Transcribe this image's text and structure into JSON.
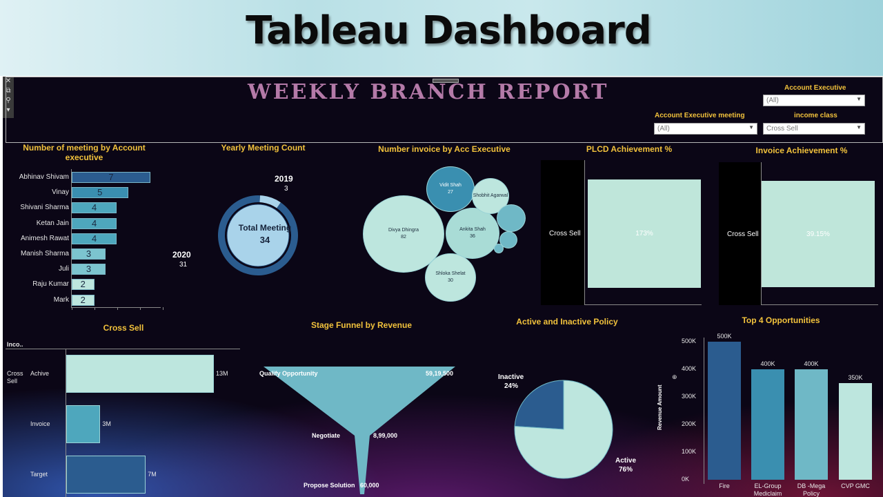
{
  "banner": {
    "title": "Tableau Dashboard"
  },
  "dashboard": {
    "title": "WEEKLY BRANCH REPORT",
    "filters": {
      "account_executive": {
        "label": "Account Executive",
        "value": "(All)"
      },
      "account_executive_meeting": {
        "label": "Account Executive meeting",
        "value": "(All)"
      },
      "income_class": {
        "label": "income class",
        "value": "Cross Sell"
      }
    }
  },
  "meetings_by_exec": {
    "title": "Number of meeting by Account executive",
    "bars": [
      {
        "name": "Abhinav Shivam",
        "value": 7,
        "color": "#2b5c8f"
      },
      {
        "name": "Vinay",
        "value": 5,
        "color": "#3a8fb0"
      },
      {
        "name": "Shivani Sharma",
        "value": 4,
        "color": "#4ea7bd"
      },
      {
        "name": "Ketan Jain",
        "value": 4,
        "color": "#4ea7bd"
      },
      {
        "name": "Animesh Rawat",
        "value": 4,
        "color": "#4ea7bd"
      },
      {
        "name": "Manish Sharma",
        "value": 3,
        "color": "#7cc4cf"
      },
      {
        "name": "Juli",
        "value": 3,
        "color": "#7cc4cf"
      },
      {
        "name": "Raju Kumar",
        "value": 2,
        "color": "#bde6de"
      },
      {
        "name": "Mark",
        "value": 2,
        "color": "#bde6de"
      }
    ],
    "max": 10
  },
  "yearly_meeting": {
    "title": "Yearly Meeting Count",
    "center_label": "Total Meeting",
    "center_value": "34",
    "slices": [
      {
        "year": "2019",
        "count": "3",
        "value": 3,
        "color": "#a9d3ea"
      },
      {
        "year": "2020",
        "count": "31",
        "value": 31,
        "color": "#2b5c8f"
      }
    ]
  },
  "invoice_by_exec": {
    "title": "Number invoice by Acc Executive",
    "bubbles": [
      {
        "name": "Divya Dhingra",
        "value": "82"
      },
      {
        "name": "Ankita Shah",
        "value": "36"
      },
      {
        "name": "Shloka Shelat",
        "value": "30"
      },
      {
        "name": "Vidit Shah",
        "value": "27"
      },
      {
        "name": "Shobhit Agarwal",
        "value": ""
      }
    ]
  },
  "plcd": {
    "title": "PLCD Achievement %",
    "row_label": "Cross Sell",
    "value": "173%"
  },
  "invoice_ach": {
    "title": "Invoice Achievement %",
    "row_label": "Cross Sell",
    "value": "39.15%"
  },
  "cross_sell": {
    "title": "Cross Sell",
    "column_header": "Inco..",
    "group_label": "Cross Sell",
    "rows": [
      {
        "name": "Achive",
        "label": "13M",
        "value": 13,
        "color": "#bde6de"
      },
      {
        "name": "Invoice",
        "label": "3M",
        "value": 3,
        "color": "#4ea7bd"
      },
      {
        "name": "Target",
        "label": "7M",
        "value": 7,
        "color": "#2b5c8f"
      }
    ]
  },
  "funnel": {
    "title": "Stage Funnel by Revenue",
    "stages": [
      {
        "name": "Qualify Opportunity",
        "value": "59,19,500"
      },
      {
        "name": "Negotiate",
        "value": "8,99,000"
      },
      {
        "name": "Propose Solution",
        "value": "60,000"
      }
    ],
    "color": "#6fb8c6"
  },
  "policy": {
    "title": "Active and Inactive Policy",
    "slices": [
      {
        "name": "Inactive",
        "pct_label": "24%",
        "value": 24,
        "color": "#2b5c8f"
      },
      {
        "name": "Active",
        "pct_label": "76%",
        "value": 76,
        "color": "#bde6de"
      }
    ]
  },
  "top4": {
    "title": "Top 4 Opportunities",
    "ylabel": "Revenue Amount",
    "yticks": [
      "500K",
      "400K",
      "300K",
      "200K",
      "100K",
      "0K"
    ],
    "bars": [
      {
        "name": "Fire",
        "label": "500K",
        "value": 500,
        "color": "#2b5c8f"
      },
      {
        "name": "EL-Group Mediclaim",
        "label": "400K",
        "value": 400,
        "color": "#3a8fb0"
      },
      {
        "name": "DB -Mega Policy",
        "label": "400K",
        "value": 400,
        "color": "#6fb8c6"
      },
      {
        "name": "CVP GMC",
        "label": "350K",
        "value": 350,
        "color": "#bde6de"
      }
    ]
  },
  "chart_data": [
    {
      "type": "bar",
      "title": "Number of meeting by Account executive",
      "categories": [
        "Abhinav Shivam",
        "Vinay",
        "Shivani Sharma",
        "Ketan Jain",
        "Animesh Rawat",
        "Manish Sharma",
        "Juli",
        "Raju Kumar",
        "Mark"
      ],
      "values": [
        7,
        5,
        4,
        4,
        4,
        3,
        3,
        2,
        2
      ]
    },
    {
      "type": "pie",
      "title": "Yearly Meeting Count",
      "categories": [
        "2019",
        "2020"
      ],
      "values": [
        3,
        31
      ]
    },
    {
      "type": "bar",
      "title": "Cross Sell",
      "categories": [
        "Achive",
        "Invoice",
        "Target"
      ],
      "values": [
        13,
        3,
        7
      ]
    },
    {
      "type": "pie",
      "title": "Active and Inactive Policy",
      "categories": [
        "Inactive",
        "Active"
      ],
      "values": [
        24,
        76
      ]
    },
    {
      "type": "bar",
      "title": "Top 4 Opportunities",
      "ylabel": "Revenue Amount",
      "categories": [
        "Fire",
        "EL-Group Mediclaim",
        "DB -Mega Policy",
        "CVP GMC"
      ],
      "values": [
        500000,
        400000,
        400000,
        350000
      ],
      "ylim": [
        0,
        500000
      ]
    }
  ]
}
